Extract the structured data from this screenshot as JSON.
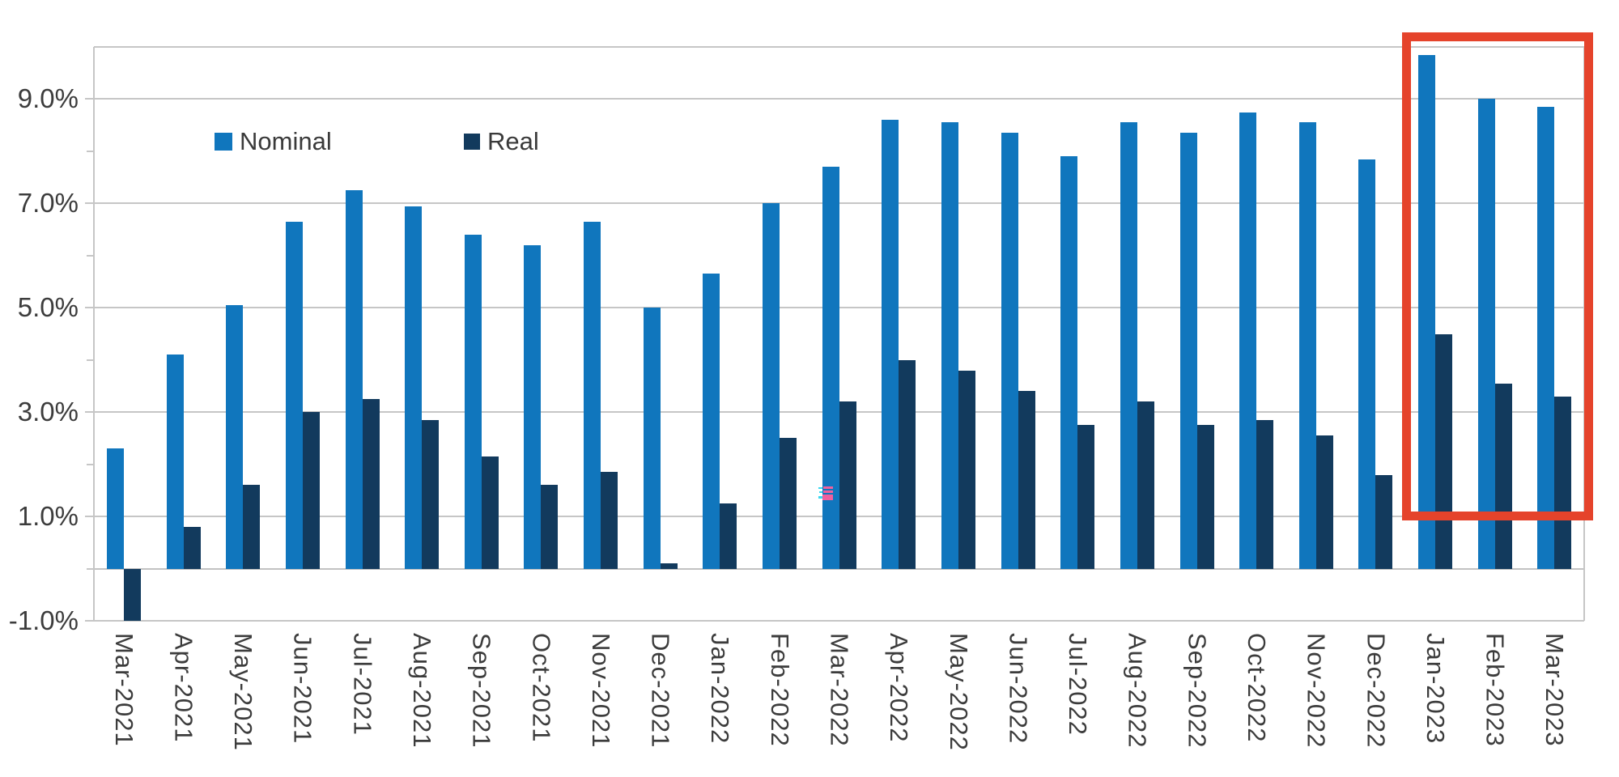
{
  "chart_data": {
    "type": "bar",
    "title": "",
    "xlabel": "",
    "ylabel": "",
    "categories": [
      "Mar-2021",
      "Apr-2021",
      "May-2021",
      "Jun-2021",
      "Jul-2021",
      "Aug-2021",
      "Sep-2021",
      "Oct-2021",
      "Nov-2021",
      "Dec-2021",
      "Jan-2022",
      "Feb-2022",
      "Mar-2022",
      "Apr-2022",
      "May-2022",
      "Jun-2022",
      "Jul-2022",
      "Aug-2022",
      "Sep-2022",
      "Oct-2022",
      "Nov-2022",
      "Dec-2022",
      "Jan-2023",
      "Feb-2023",
      "Mar-2023"
    ],
    "series": [
      {
        "name": "Nominal",
        "color": "#1076BD",
        "values": [
          2.3,
          4.1,
          5.05,
          6.65,
          7.25,
          6.95,
          6.4,
          6.2,
          6.65,
          5.0,
          5.65,
          7.0,
          7.7,
          8.6,
          8.55,
          8.35,
          7.9,
          8.55,
          8.35,
          8.75,
          8.55,
          7.85,
          9.85,
          9.0,
          8.85
        ]
      },
      {
        "name": "Real",
        "color": "#123A5D",
        "values": [
          -1.0,
          0.8,
          1.6,
          3.0,
          3.25,
          2.85,
          2.15,
          1.6,
          1.85,
          0.1,
          1.25,
          2.5,
          3.2,
          4.0,
          3.8,
          3.4,
          2.75,
          3.2,
          2.75,
          2.85,
          2.55,
          1.8,
          4.5,
          3.55,
          3.3
        ]
      }
    ],
    "y_axis": {
      "min": -1.0,
      "max": 10.0,
      "baseline": 0,
      "major_gridlines": [
        -1,
        1,
        3,
        5,
        7,
        9
      ],
      "minor_ticks": [
        0,
        2,
        4,
        6,
        8
      ],
      "tick_labels": [
        "-1.0%",
        "1.0%",
        "3.0%",
        "5.0%",
        "7.0%",
        "9.0%"
      ]
    },
    "grid": true,
    "legend_position": "inside-top-left",
    "highlight_box": {
      "categories": [
        "Jan-2023",
        "Feb-2023",
        "Mar-2023"
      ],
      "color": "#E5432B"
    }
  },
  "legend": {
    "items": [
      {
        "label": "Nominal",
        "color": "#1076BD"
      },
      {
        "label": "Real",
        "color": "#123A5D"
      }
    ]
  },
  "artifact": {
    "name": "glitch-artifact",
    "pink": "#F0609E",
    "cyan": "#38D8F0"
  },
  "colors": {
    "background": "#FFFFFF",
    "gridline": "#C6C6C6",
    "axis_text": "#3C3C3C",
    "highlight": "#E5432B"
  }
}
